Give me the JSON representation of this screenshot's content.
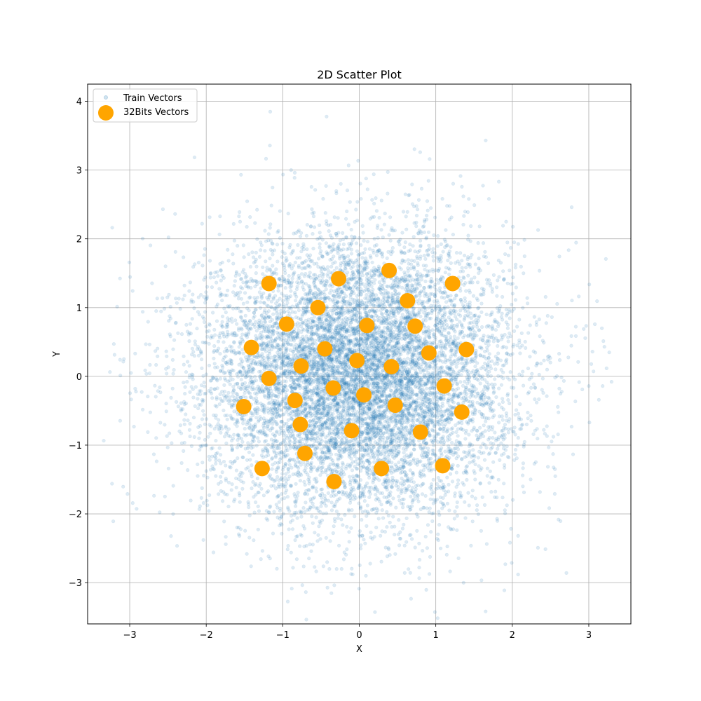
{
  "chart_data": {
    "type": "scatter",
    "title": "2D Scatter Plot",
    "xlabel": "X",
    "ylabel": "Y",
    "xlim": [
      -3.55,
      3.55
    ],
    "ylim": [
      -3.6,
      4.25
    ],
    "xticks": [
      -3,
      -2,
      -1,
      0,
      1,
      2,
      3
    ],
    "yticks": [
      -3,
      -2,
      -1,
      0,
      1,
      2,
      3,
      4
    ],
    "xtick_labels": [
      "−3",
      "−2",
      "−1",
      "0",
      "1",
      "2",
      "3"
    ],
    "ytick_labels": [
      "−3",
      "−2",
      "−1",
      "0",
      "1",
      "2",
      "3",
      "4"
    ],
    "grid": true,
    "legend_position": "top-left",
    "series": [
      {
        "name": "Train Vectors",
        "color": "#1f77b4",
        "marker": "small-dot",
        "distribution": "standard-normal-2d",
        "count": 10000,
        "opacity": 0.15
      },
      {
        "name": "32Bits Vectors",
        "color": "#ffa500",
        "marker": "large-dot",
        "points": [
          [
            -1.18,
            1.35
          ],
          [
            -0.27,
            1.42
          ],
          [
            0.39,
            1.54
          ],
          [
            1.22,
            1.35
          ],
          [
            -0.54,
            1.0
          ],
          [
            0.63,
            1.1
          ],
          [
            -0.95,
            0.76
          ],
          [
            0.1,
            0.74
          ],
          [
            0.73,
            0.73
          ],
          [
            -1.41,
            0.42
          ],
          [
            -0.45,
            0.4
          ],
          [
            0.91,
            0.34
          ],
          [
            1.4,
            0.39
          ],
          [
            -0.76,
            0.15
          ],
          [
            -0.03,
            0.23
          ],
          [
            0.42,
            0.14
          ],
          [
            -1.18,
            -0.03
          ],
          [
            -0.34,
            -0.17
          ],
          [
            1.11,
            -0.14
          ],
          [
            0.06,
            -0.27
          ],
          [
            -1.51,
            -0.44
          ],
          [
            -0.84,
            -0.35
          ],
          [
            0.47,
            -0.42
          ],
          [
            1.34,
            -0.52
          ],
          [
            -0.77,
            -0.7
          ],
          [
            -0.1,
            -0.79
          ],
          [
            0.8,
            -0.81
          ],
          [
            -0.71,
            -1.12
          ],
          [
            -1.27,
            -1.34
          ],
          [
            0.29,
            -1.34
          ],
          [
            1.09,
            -1.3
          ],
          [
            -0.33,
            -1.53
          ]
        ]
      }
    ]
  }
}
